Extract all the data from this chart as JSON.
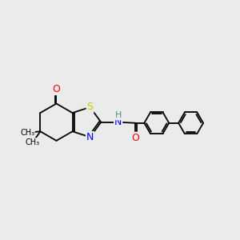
{
  "background_color": "#ebebeb",
  "bond_color": "#000000",
  "bond_width": 1.3,
  "atom_colors": {
    "O": "#ff0000",
    "S": "#cccc00",
    "N": "#0000ff",
    "H": "#4a9090",
    "C": "#000000"
  },
  "font_size": 9
}
